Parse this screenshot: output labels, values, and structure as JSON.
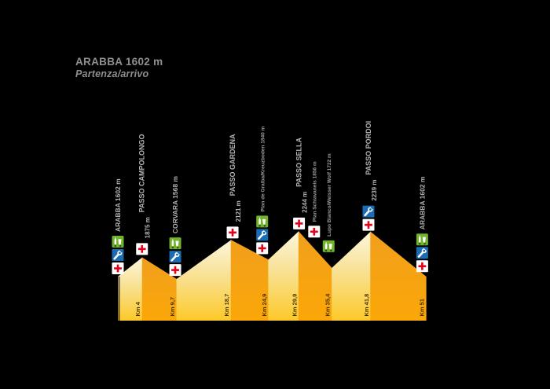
{
  "title": {
    "peak": "ARABBA 1602 m",
    "subtitle": "Partenza/arrivo"
  },
  "colors": {
    "background": "#000000",
    "climb_top": "#fdf6dd",
    "climb_mid": "#f8e193",
    "climb_bottom": "#fdc929",
    "descent_top": "#f19f1d",
    "descent_bottom": "#fba708",
    "km_text": "#4a3404",
    "label_text": "#b3b3b3",
    "small_label_text": "#9c9c9c",
    "medical_red": "#e2001a",
    "mechanic_blue": "#1a6cb5",
    "refreshment_green": "#72b32b",
    "icon_white": "#ffffff"
  },
  "legend_icons": {
    "refreshment": "refreshment-station-icon",
    "mechanic": "mechanic-assistance-icon",
    "medical": "medical-assistance-icon"
  },
  "chart_data": {
    "type": "area",
    "title": "ARABBA 1602 m — Partenza/arrivo",
    "xlabel": "Km",
    "ylabel": "m",
    "x_range_km": [
      0,
      51
    ],
    "grid": false,
    "points": [
      {
        "km": 0,
        "elevation": 1602
      },
      {
        "km": 4,
        "elevation": 1875
      },
      {
        "km": 9.7,
        "elevation": 1568
      },
      {
        "km": 18.7,
        "elevation": 2121
      },
      {
        "km": 24.9,
        "elevation": 1840
      },
      {
        "km": 29.9,
        "elevation": 2244
      },
      {
        "km": 35.4,
        "elevation": 1722
      },
      {
        "km": 41.8,
        "elevation": 2239
      },
      {
        "km": 51,
        "elevation": 1602
      }
    ],
    "km_labels": [
      {
        "text": "Km 4",
        "km": 4
      },
      {
        "text": "Km 9,7",
        "km": 9.7
      },
      {
        "text": "Km 18,7",
        "km": 18.7
      },
      {
        "text": "Km 24,9",
        "km": 24.9
      },
      {
        "text": "Km 29,9",
        "km": 29.9
      },
      {
        "text": "Km 35,4",
        "km": 35.4
      },
      {
        "text": "Km 41,8",
        "km": 41.8
      },
      {
        "text": "Km 51",
        "km": 51
      }
    ],
    "stations": [
      {
        "name": "ARABBA",
        "altitude": "1602 m",
        "km": 0,
        "size": "large",
        "inline_altitude": true,
        "services": [
          "refreshment",
          "mechanic",
          "medical"
        ],
        "lift": 3
      },
      {
        "name": "PASSO CAMPOLONGO",
        "altitude": "1875 m",
        "km": 4,
        "size": "large",
        "inline_altitude": false,
        "services": [
          "medical"
        ],
        "lift": 3
      },
      {
        "name": "CORVARA",
        "altitude": "1568 m",
        "km": 9.5,
        "size": "large",
        "inline_altitude": true,
        "services": [
          "refreshment",
          "mechanic",
          "medical"
        ],
        "lift": 3
      },
      {
        "name": "PASSO GARDENA",
        "altitude": "2121 m",
        "km": 19,
        "size": "large",
        "inline_altitude": false,
        "services": [
          "medical"
        ],
        "lift": 3
      },
      {
        "name": "Plan de Gralba/Kreuzboden 1840 m",
        "altitude": "",
        "km": 23.9,
        "size": "small",
        "inline_altitude": true,
        "services": [
          "refreshment",
          "mechanic",
          "medical"
        ],
        "lift": 3
      },
      {
        "name": "PASSO SELLA",
        "altitude": "2244 m",
        "km": 30,
        "size": "large",
        "inline_altitude": false,
        "services": [
          "medical"
        ],
        "lift": 3
      },
      {
        "name": "Plan Schiavaneis 1856 m",
        "altitude": "",
        "km": 32.5,
        "size": "small",
        "inline_altitude": true,
        "services": [
          "medical"
        ],
        "lift": 14
      },
      {
        "name": "Lupo Bianco/Weisser Wolf 1722 m",
        "altitude": "",
        "km": 34.9,
        "size": "small",
        "inline_altitude": true,
        "services": [
          "refreshment"
        ],
        "lift": 16
      },
      {
        "name": "PASSO PORDOI",
        "altitude": "2239 m",
        "km": 41.5,
        "size": "large",
        "inline_altitude": false,
        "services": [
          "mechanic",
          "medical"
        ],
        "lift": 3
      },
      {
        "name": "ARABBA",
        "altitude": "1602 m",
        "km": 50.4,
        "size": "large",
        "inline_altitude": true,
        "services": [
          "refreshment",
          "mechanic",
          "medical"
        ],
        "lift": 2
      }
    ]
  }
}
